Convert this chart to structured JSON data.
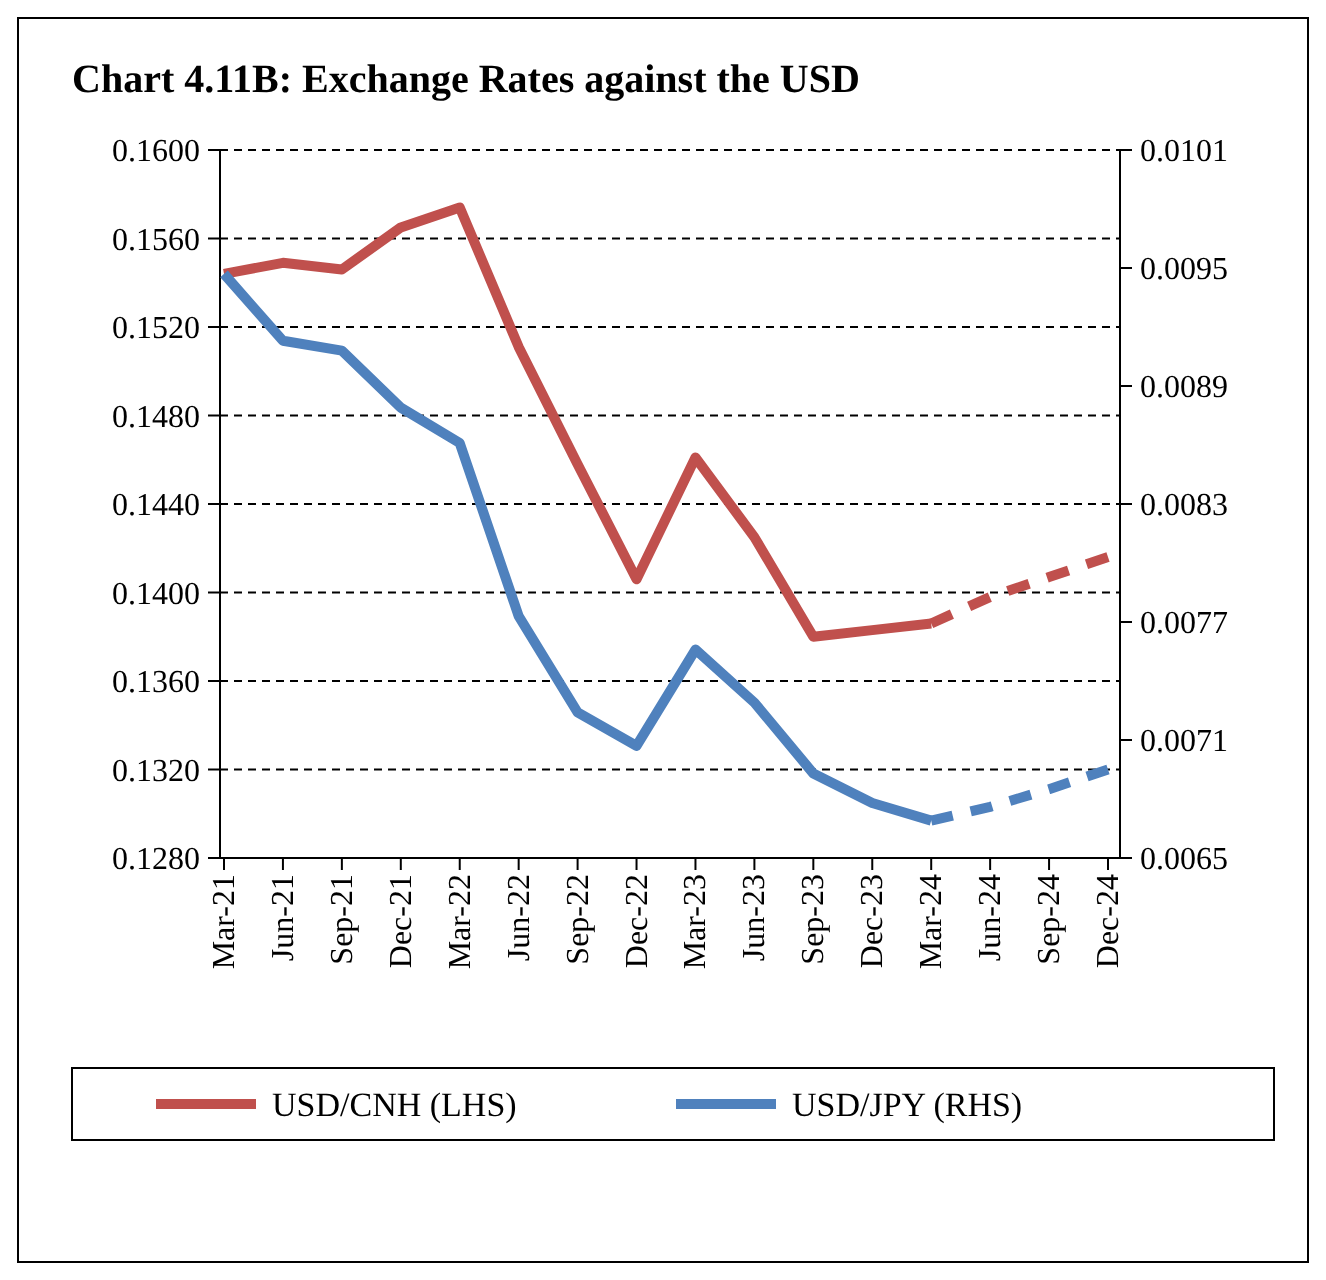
{
  "chart_data": {
    "type": "line",
    "title": "Chart 4.11B: Exchange Rates against the USD",
    "categories": [
      "Mar-21",
      "Jun-21",
      "Sep-21",
      "Dec-21",
      "Mar-22",
      "Jun-22",
      "Sep-22",
      "Dec-22",
      "Mar-23",
      "Jun-23",
      "Sep-23",
      "Dec-23",
      "Mar-24",
      "Jun-24",
      "Sep-24",
      "Dec-24"
    ],
    "series": [
      {
        "name": "USD/CNH (LHS)",
        "color": "#c0504d",
        "line_style": "solid",
        "values": [
          0.1544,
          0.1549,
          0.1546,
          0.1565,
          0.1574,
          0.1511,
          0.1458,
          0.1406,
          0.1461,
          0.1425,
          0.138,
          0.1383,
          0.1386,
          null,
          null,
          null
        ]
      },
      {
        "color": "#c0504d",
        "line_style": "dashed",
        "values": [
          null,
          null,
          null,
          null,
          null,
          null,
          null,
          null,
          null,
          null,
          null,
          null,
          0.1386,
          0.1398,
          0.1407,
          0.1416
        ]
      },
      {
        "name": "USD/JPY (RHS)",
        "color": "#4f81bd",
        "axis": "y2",
        "line_style": "solid",
        "values": [
          0.00947,
          0.00913,
          0.00908,
          0.00879,
          0.00861,
          0.00773,
          0.00724,
          0.00707,
          0.00756,
          0.00729,
          0.00693,
          0.00678,
          0.00669,
          null,
          null,
          null
        ]
      },
      {
        "color": "#4f81bd",
        "axis": "y2",
        "line_style": "dashed",
        "values": [
          null,
          null,
          null,
          null,
          null,
          null,
          null,
          null,
          null,
          null,
          null,
          null,
          0.00669,
          0.00676,
          0.00685,
          0.00695
        ]
      }
    ],
    "ylim": [
      0.128,
      0.16
    ],
    "yticks": [
      {
        "value": 0.128,
        "label": "0.1280"
      },
      {
        "value": 0.132,
        "label": "0.1320"
      },
      {
        "value": 0.136,
        "label": "0.1360"
      },
      {
        "value": 0.14,
        "label": "0.1400"
      },
      {
        "value": 0.144,
        "label": "0.1440"
      },
      {
        "value": 0.148,
        "label": "0.1480"
      },
      {
        "value": 0.152,
        "label": "0.1520"
      },
      {
        "value": 0.156,
        "label": "0.1560"
      },
      {
        "value": 0.16,
        "label": "0.1600"
      }
    ],
    "y2lim": [
      0.0065,
      0.0101
    ],
    "y2ticks": [
      0.0065,
      0.0071,
      0.0077,
      0.0083,
      0.0089,
      0.0095,
      0.0101
    ],
    "grid": "y",
    "legend": "bottom"
  }
}
